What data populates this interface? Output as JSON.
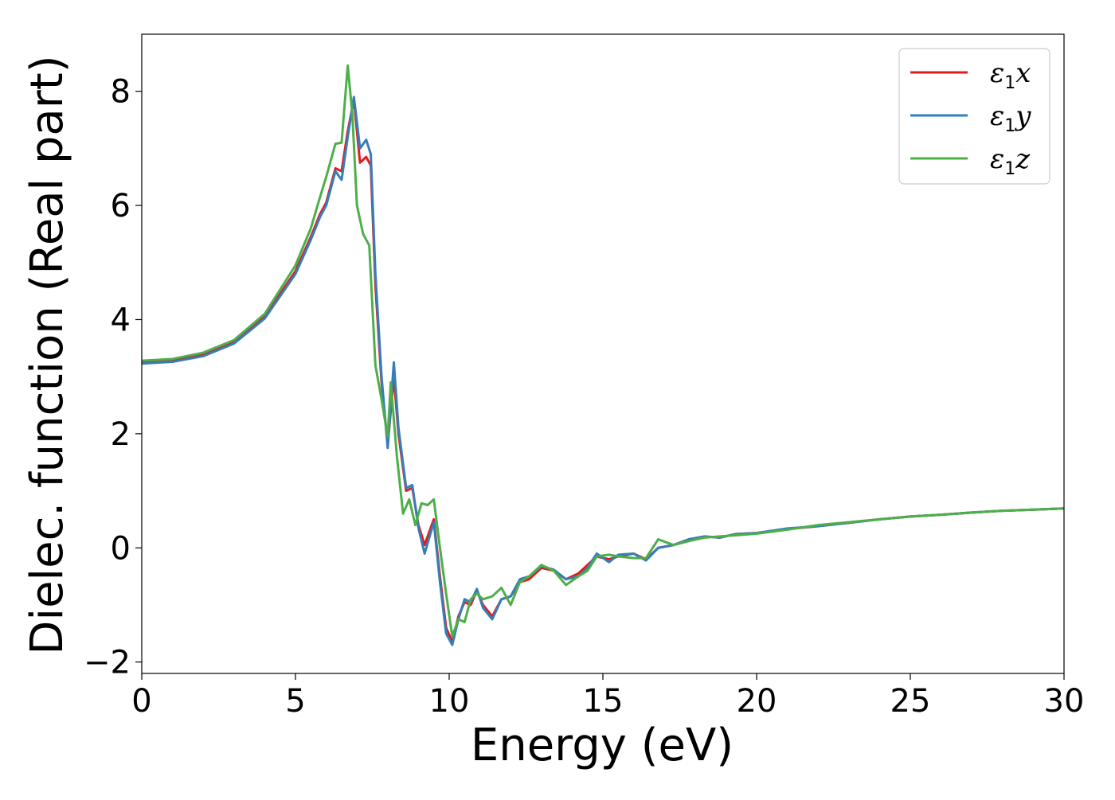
{
  "chart_data": {
    "type": "line",
    "xlabel": "Energy (eV)",
    "ylabel": "Dielec. function (Real part)",
    "xlim": [
      0,
      30
    ],
    "ylim": [
      -2.2,
      9.0
    ],
    "xticks": [
      0,
      5,
      10,
      15,
      20,
      25,
      30
    ],
    "xtick_labels": [
      "0",
      "5",
      "10",
      "15",
      "20",
      "25",
      "30"
    ],
    "yticks": [
      -2,
      0,
      2,
      4,
      6,
      8
    ],
    "ytick_labels": [
      "−2",
      "0",
      "2",
      "4",
      "6",
      "8"
    ],
    "grid": false,
    "legend_position": "top-right",
    "series": [
      {
        "name": "ε1x",
        "legend_base": "ε",
        "legend_sub": "1",
        "legend_var": "x",
        "color": "#e41a1c",
        "points": [
          [
            0,
            3.25
          ],
          [
            1,
            3.28
          ],
          [
            2,
            3.38
          ],
          [
            3,
            3.6
          ],
          [
            4,
            4.05
          ],
          [
            5,
            4.85
          ],
          [
            5.5,
            5.45
          ],
          [
            5.8,
            5.85
          ],
          [
            6.0,
            6.05
          ],
          [
            6.3,
            6.65
          ],
          [
            6.5,
            6.6
          ],
          [
            6.7,
            7.3
          ],
          [
            6.9,
            7.85
          ],
          [
            7.1,
            6.75
          ],
          [
            7.3,
            6.85
          ],
          [
            7.45,
            6.7
          ],
          [
            7.6,
            4.6
          ],
          [
            7.8,
            2.9
          ],
          [
            8.0,
            1.8
          ],
          [
            8.2,
            3.0
          ],
          [
            8.35,
            2.0
          ],
          [
            8.6,
            1.0
          ],
          [
            8.8,
            1.05
          ],
          [
            9.0,
            0.4
          ],
          [
            9.2,
            0.05
          ],
          [
            9.5,
            0.5
          ],
          [
            9.7,
            -0.5
          ],
          [
            9.9,
            -1.4
          ],
          [
            10.1,
            -1.65
          ],
          [
            10.3,
            -1.2
          ],
          [
            10.5,
            -0.95
          ],
          [
            10.7,
            -1.0
          ],
          [
            10.9,
            -0.75
          ],
          [
            11.1,
            -1.0
          ],
          [
            11.4,
            -1.2
          ],
          [
            11.7,
            -0.9
          ],
          [
            12.0,
            -0.85
          ],
          [
            12.3,
            -0.6
          ],
          [
            12.6,
            -0.55
          ],
          [
            13.0,
            -0.35
          ],
          [
            13.4,
            -0.4
          ],
          [
            13.8,
            -0.55
          ],
          [
            14.2,
            -0.45
          ],
          [
            14.5,
            -0.3
          ],
          [
            14.8,
            -0.15
          ],
          [
            15.2,
            -0.2
          ],
          [
            15.5,
            -0.15
          ],
          [
            16.0,
            -0.1
          ],
          [
            16.4,
            -0.2
          ],
          [
            16.8,
            0.0
          ],
          [
            17.3,
            0.05
          ],
          [
            17.8,
            0.15
          ],
          [
            18.3,
            0.2
          ],
          [
            18.8,
            0.18
          ],
          [
            19.3,
            0.24
          ],
          [
            20.0,
            0.26
          ],
          [
            21.0,
            0.33
          ],
          [
            22.0,
            0.38
          ],
          [
            23.0,
            0.44
          ],
          [
            24.0,
            0.5
          ],
          [
            25.0,
            0.55
          ],
          [
            26.0,
            0.58
          ],
          [
            27.0,
            0.62
          ],
          [
            28.0,
            0.65
          ],
          [
            29.0,
            0.67
          ],
          [
            30.0,
            0.69
          ]
        ]
      },
      {
        "name": "ε1y",
        "legend_base": "ε",
        "legend_sub": "1",
        "legend_var": "y",
        "color": "#377eb8",
        "points": [
          [
            0,
            3.23
          ],
          [
            1,
            3.26
          ],
          [
            2,
            3.36
          ],
          [
            3,
            3.58
          ],
          [
            4,
            4.02
          ],
          [
            5,
            4.8
          ],
          [
            5.5,
            5.4
          ],
          [
            5.8,
            5.8
          ],
          [
            6.0,
            6.0
          ],
          [
            6.3,
            6.6
          ],
          [
            6.5,
            6.45
          ],
          [
            6.7,
            7.2
          ],
          [
            6.9,
            7.9
          ],
          [
            7.1,
            7.0
          ],
          [
            7.3,
            7.15
          ],
          [
            7.45,
            6.9
          ],
          [
            7.6,
            4.8
          ],
          [
            7.8,
            3.0
          ],
          [
            8.0,
            1.75
          ],
          [
            8.2,
            3.25
          ],
          [
            8.35,
            2.1
          ],
          [
            8.6,
            1.05
          ],
          [
            8.8,
            1.1
          ],
          [
            9.0,
            0.35
          ],
          [
            9.2,
            -0.1
          ],
          [
            9.5,
            0.45
          ],
          [
            9.7,
            -0.6
          ],
          [
            9.9,
            -1.5
          ],
          [
            10.1,
            -1.7
          ],
          [
            10.3,
            -1.25
          ],
          [
            10.5,
            -0.9
          ],
          [
            10.7,
            -0.95
          ],
          [
            10.9,
            -0.72
          ],
          [
            11.1,
            -1.05
          ],
          [
            11.4,
            -1.25
          ],
          [
            11.7,
            -0.9
          ],
          [
            12.0,
            -0.85
          ],
          [
            12.3,
            -0.55
          ],
          [
            12.6,
            -0.5
          ],
          [
            13.0,
            -0.32
          ],
          [
            13.4,
            -0.38
          ],
          [
            13.8,
            -0.55
          ],
          [
            14.2,
            -0.5
          ],
          [
            14.5,
            -0.35
          ],
          [
            14.8,
            -0.1
          ],
          [
            15.2,
            -0.25
          ],
          [
            15.5,
            -0.12
          ],
          [
            16.0,
            -0.1
          ],
          [
            16.4,
            -0.22
          ],
          [
            16.8,
            0.0
          ],
          [
            17.3,
            0.05
          ],
          [
            17.8,
            0.15
          ],
          [
            18.3,
            0.2
          ],
          [
            18.8,
            0.18
          ],
          [
            19.3,
            0.24
          ],
          [
            20.0,
            0.26
          ],
          [
            21.0,
            0.34
          ],
          [
            22.0,
            0.38
          ],
          [
            23.0,
            0.44
          ],
          [
            24.0,
            0.5
          ],
          [
            25.0,
            0.55
          ],
          [
            26.0,
            0.58
          ],
          [
            27.0,
            0.62
          ],
          [
            28.0,
            0.65
          ],
          [
            29.0,
            0.67
          ],
          [
            30.0,
            0.69
          ]
        ]
      },
      {
        "name": "ε1z",
        "legend_base": "ε",
        "legend_sub": "1",
        "legend_var": "z",
        "color": "#4daf4a",
        "points": [
          [
            0,
            3.28
          ],
          [
            1,
            3.31
          ],
          [
            2,
            3.42
          ],
          [
            3,
            3.64
          ],
          [
            4,
            4.1
          ],
          [
            5,
            4.95
          ],
          [
            5.5,
            5.6
          ],
          [
            5.8,
            6.15
          ],
          [
            6.0,
            6.5
          ],
          [
            6.3,
            7.08
          ],
          [
            6.5,
            7.1
          ],
          [
            6.7,
            8.45
          ],
          [
            6.85,
            7.6
          ],
          [
            7.0,
            6.0
          ],
          [
            7.2,
            5.5
          ],
          [
            7.4,
            5.3
          ],
          [
            7.6,
            3.2
          ],
          [
            7.8,
            2.6
          ],
          [
            8.0,
            1.95
          ],
          [
            8.1,
            2.9
          ],
          [
            8.3,
            1.6
          ],
          [
            8.5,
            0.6
          ],
          [
            8.7,
            0.85
          ],
          [
            8.9,
            0.4
          ],
          [
            9.1,
            0.78
          ],
          [
            9.3,
            0.75
          ],
          [
            9.5,
            0.85
          ],
          [
            9.7,
            0.0
          ],
          [
            9.9,
            -0.8
          ],
          [
            10.1,
            -1.55
          ],
          [
            10.3,
            -1.25
          ],
          [
            10.5,
            -1.3
          ],
          [
            10.7,
            -0.9
          ],
          [
            10.9,
            -0.8
          ],
          [
            11.1,
            -0.9
          ],
          [
            11.4,
            -0.85
          ],
          [
            11.7,
            -0.7
          ],
          [
            12.0,
            -1.0
          ],
          [
            12.3,
            -0.6
          ],
          [
            12.6,
            -0.5
          ],
          [
            13.0,
            -0.3
          ],
          [
            13.4,
            -0.4
          ],
          [
            13.8,
            -0.65
          ],
          [
            14.2,
            -0.5
          ],
          [
            14.5,
            -0.4
          ],
          [
            14.8,
            -0.15
          ],
          [
            15.2,
            -0.12
          ],
          [
            15.5,
            -0.15
          ],
          [
            16.0,
            -0.18
          ],
          [
            16.4,
            -0.18
          ],
          [
            16.8,
            0.15
          ],
          [
            17.3,
            0.05
          ],
          [
            17.8,
            0.12
          ],
          [
            18.3,
            0.18
          ],
          [
            18.8,
            0.2
          ],
          [
            19.3,
            0.22
          ],
          [
            20.0,
            0.25
          ],
          [
            21.0,
            0.32
          ],
          [
            22.0,
            0.4
          ],
          [
            23.0,
            0.45
          ],
          [
            24.0,
            0.5
          ],
          [
            25.0,
            0.55
          ],
          [
            26.0,
            0.58
          ],
          [
            27.0,
            0.62
          ],
          [
            28.0,
            0.65
          ],
          [
            29.0,
            0.67
          ],
          [
            30.0,
            0.69
          ]
        ]
      }
    ]
  }
}
